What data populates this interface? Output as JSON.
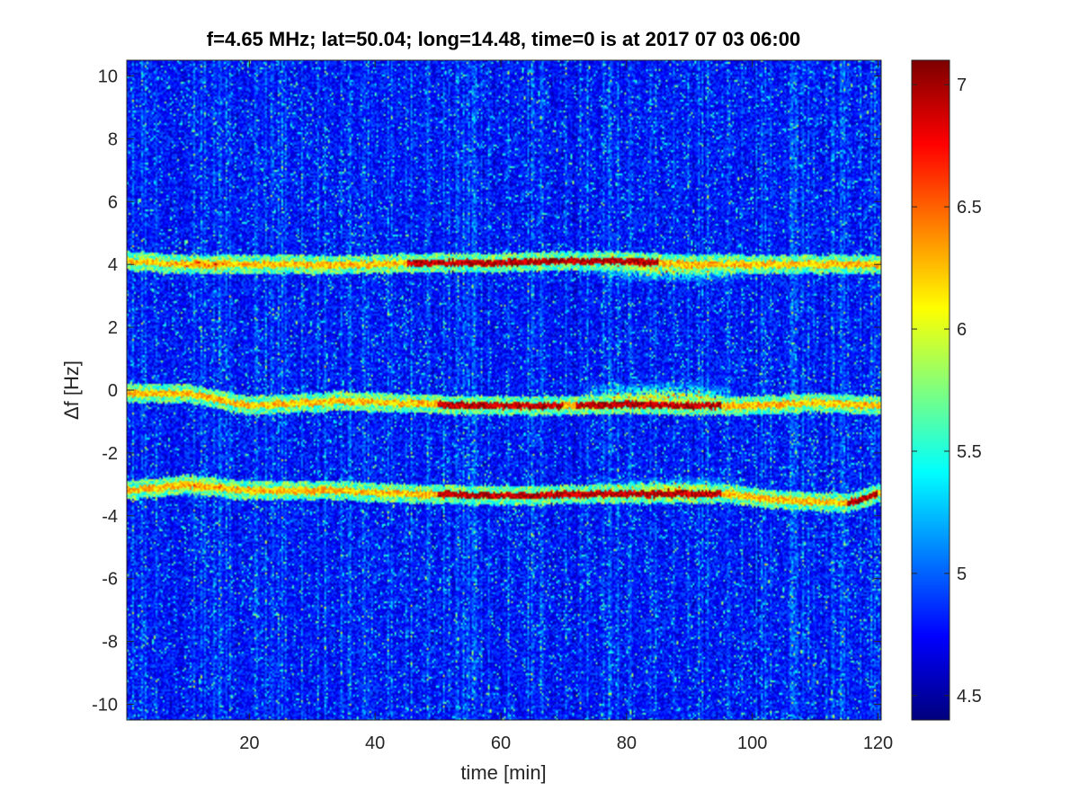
{
  "chart_data": {
    "type": "heatmap",
    "title": "f=4.65 MHz;  lat=50.04; long=14.48, time=0 is at 2017 07 03 06:00",
    "xlabel": "time [min]",
    "ylabel": "Δf [Hz]",
    "xlim": [
      0.5,
      120.5
    ],
    "ylim": [
      -10.5,
      10.5
    ],
    "x_ticks": [
      {
        "value": 20,
        "label": "20"
      },
      {
        "value": 40,
        "label": "40"
      },
      {
        "value": 60,
        "label": "60"
      },
      {
        "value": 80,
        "label": "80"
      },
      {
        "value": 100,
        "label": "100"
      },
      {
        "value": 120,
        "label": "120"
      }
    ],
    "y_ticks": [
      {
        "value": 10,
        "label": "10"
      },
      {
        "value": 8,
        "label": "8"
      },
      {
        "value": 6,
        "label": "6"
      },
      {
        "value": 4,
        "label": "4"
      },
      {
        "value": 2,
        "label": "2"
      },
      {
        "value": 0,
        "label": "0"
      },
      {
        "value": -2,
        "label": "-2"
      },
      {
        "value": -4,
        "label": "-4"
      },
      {
        "value": -6,
        "label": "-6"
      },
      {
        "value": -8,
        "label": "-8"
      },
      {
        "value": -10,
        "label": "-10"
      }
    ],
    "colorbar": {
      "colormap": "jet",
      "clim": [
        4.4,
        7.1
      ],
      "ticks": [
        {
          "value": 7,
          "label": "7"
        },
        {
          "value": 6.5,
          "label": "6.5"
        },
        {
          "value": 6,
          "label": "6"
        },
        {
          "value": 5.5,
          "label": "5.5"
        },
        {
          "value": 5,
          "label": "5"
        },
        {
          "value": 4.5,
          "label": "4.5"
        }
      ]
    },
    "traces": [
      {
        "points": [
          [
            1,
            4.1
          ],
          [
            10,
            4.0
          ],
          [
            20,
            4.0
          ],
          [
            30,
            4.0
          ],
          [
            40,
            4.0
          ],
          [
            50,
            4.05
          ],
          [
            60,
            4.05
          ],
          [
            70,
            4.1
          ],
          [
            80,
            4.1
          ],
          [
            90,
            4.0
          ],
          [
            100,
            4.0
          ],
          [
            120,
            4.0
          ]
        ],
        "peak": [
          [
            45,
            60
          ],
          [
            60,
            85
          ]
        ]
      },
      {
        "points": [
          [
            10,
            -0.1
          ],
          [
            20,
            -0.5
          ],
          [
            35,
            -0.35
          ],
          [
            50,
            -0.45
          ],
          [
            60,
            -0.5
          ],
          [
            70,
            -0.5
          ],
          [
            80,
            -0.45
          ],
          [
            90,
            -0.5
          ],
          [
            100,
            -0.5
          ],
          [
            110,
            -0.4
          ],
          [
            120,
            -0.5
          ]
        ],
        "peak": [
          [
            50,
            70
          ],
          [
            72,
            95
          ]
        ]
      },
      {
        "points": [
          [
            1,
            -3.2
          ],
          [
            10,
            -3.0
          ],
          [
            20,
            -3.2
          ],
          [
            35,
            -3.2
          ],
          [
            45,
            -3.3
          ],
          [
            55,
            -3.35
          ],
          [
            65,
            -3.35
          ],
          [
            75,
            -3.3
          ],
          [
            85,
            -3.3
          ],
          [
            95,
            -3.3
          ],
          [
            105,
            -3.5
          ],
          [
            115,
            -3.6
          ],
          [
            120,
            -3.3
          ]
        ],
        "peak": [
          [
            50,
            70
          ],
          [
            70,
            95
          ],
          [
            115,
            120
          ]
        ]
      }
    ],
    "diffuse_regions": [
      {
        "t0": 74,
        "t1": 100,
        "df": 3.9,
        "spread": 0.5
      },
      {
        "t0": 72,
        "t1": 98,
        "df": -0.25,
        "spread": 0.55
      },
      {
        "t0": 74,
        "t1": 100,
        "df": -3.2,
        "spread": 0.45
      },
      {
        "t0": 1,
        "t1": 25,
        "df": 4.0,
        "spread": 0.35
      },
      {
        "t0": 1,
        "t1": 25,
        "df": -3.1,
        "spread": 0.3
      }
    ]
  }
}
